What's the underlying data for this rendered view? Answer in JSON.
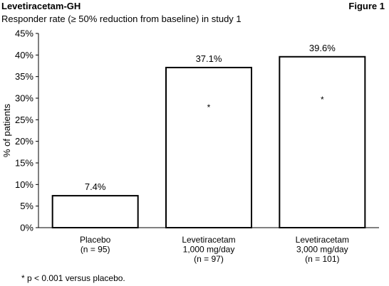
{
  "header": {
    "title": "Levetiracetam-GH",
    "figure_label": "Figure 1",
    "subtitle": "Responder rate (≥ 50% reduction from baseline) in study 1"
  },
  "footnote": "* p < 0.001 versus placebo.",
  "chart_data": {
    "type": "bar",
    "title": "Responder rate (≥ 50% reduction from baseline) in study 1",
    "ylabel": "% of patients",
    "xlabel": "",
    "ylim": [
      0,
      45
    ],
    "yticks": [
      0,
      5,
      10,
      15,
      20,
      25,
      30,
      35,
      40,
      45
    ],
    "ytick_labels": [
      "0%",
      "5%",
      "10%",
      "15%",
      "20%",
      "25%",
      "30%",
      "35%",
      "40%",
      "45%"
    ],
    "grid": false,
    "categories": [
      [
        "Placebo",
        "(n = 95)"
      ],
      [
        "Levetiracetam",
        "1,000 mg/day",
        "(n = 97)"
      ],
      [
        "Levetiracetam",
        "3,000 mg/day",
        "(n = 101)"
      ]
    ],
    "values": [
      7.4,
      37.1,
      39.6
    ],
    "value_labels": [
      "7.4%",
      "37.1%",
      "39.6%"
    ],
    "significance_marks": [
      "",
      "*",
      "*"
    ],
    "colors": {
      "bar_fill": "#ffffff",
      "bar_stroke": "#000000",
      "axis": "#000000"
    }
  }
}
